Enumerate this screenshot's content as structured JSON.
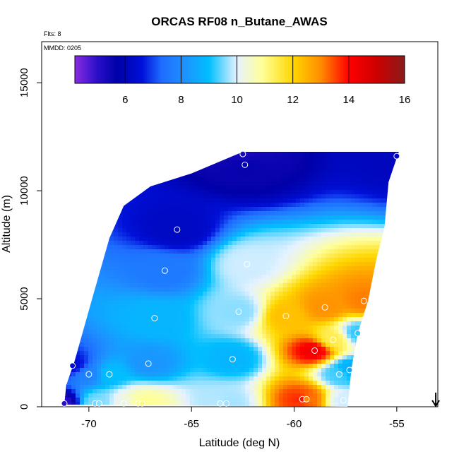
{
  "chart_data": {
    "type": "heatmap",
    "title": "ORCAS RF08 n_Butane_AWAS",
    "xlabel": "Latitude (deg N)",
    "ylabel": "Altitude (m)",
    "flights_label": "Flts: 8",
    "date_label": "MMDD: 0205",
    "xlim": [
      -72.3,
      -53.0
    ],
    "ylim": [
      0,
      16900
    ],
    "x_ticks": [
      -70,
      -65,
      -60,
      -55
    ],
    "x_tick_labels": [
      "-70",
      "-65",
      "-60",
      "-55"
    ],
    "y_ticks": [
      0,
      5000,
      10000,
      15000
    ],
    "y_tick_labels": [
      "0",
      "5000",
      "10000",
      "15000"
    ],
    "colorbar": {
      "min": 4.2,
      "max": 16,
      "ticks": [
        6,
        8,
        10,
        12,
        14,
        16
      ],
      "tick_labels": [
        "6",
        "8",
        "10",
        "12",
        "14",
        "16"
      ],
      "stops": [
        {
          "v": 4.2,
          "c": "#8a2be2"
        },
        {
          "v": 5.0,
          "c": "#2a0fc8"
        },
        {
          "v": 5.7,
          "c": "#0000a8"
        },
        {
          "v": 6.6,
          "c": "#0010d8"
        },
        {
          "v": 7.3,
          "c": "#1e6cff"
        },
        {
          "v": 8.1,
          "c": "#1e90ff"
        },
        {
          "v": 9.0,
          "c": "#00bfff"
        },
        {
          "v": 10.0,
          "c": "#e6f2ff"
        },
        {
          "v": 10.9,
          "c": "#ffff99"
        },
        {
          "v": 12.0,
          "c": "#ffd700"
        },
        {
          "v": 13.0,
          "c": "#ff8c00"
        },
        {
          "v": 14.0,
          "c": "#ff0000"
        },
        {
          "v": 15.0,
          "c": "#cd0000"
        },
        {
          "v": 16.0,
          "c": "#8b1a1a"
        }
      ]
    },
    "envelope": [
      {
        "lat": -71.2,
        "top": 100
      },
      {
        "lat": -71.1,
        "top": 1000
      },
      {
        "lat": -70.7,
        "top": 2100
      },
      {
        "lat": -69.9,
        "top": 4800
      },
      {
        "lat": -69.0,
        "top": 7800
      },
      {
        "lat": -68.3,
        "top": 9300
      },
      {
        "lat": -67.0,
        "top": 10200
      },
      {
        "lat": -65.0,
        "top": 10800
      },
      {
        "lat": -62.5,
        "top": 11800
      },
      {
        "lat": -54.9,
        "top": 11800
      },
      {
        "lat": -55.4,
        "top": 10400
      },
      {
        "lat": -55.6,
        "top": 8300
      },
      {
        "lat": -56.0,
        "top": 6800
      },
      {
        "lat": -56.4,
        "top": 4900
      },
      {
        "lat": -56.9,
        "top": 3400
      },
      {
        "lat": -57.2,
        "top": 1800
      },
      {
        "lat": -57.4,
        "top": 0
      }
    ],
    "samples": [
      {
        "lat": -71.2,
        "alt": 150,
        "value": 5.0
      },
      {
        "lat": -70.8,
        "alt": 1900,
        "value": 6.5
      },
      {
        "lat": -70.0,
        "alt": 1500,
        "value": 7.8
      },
      {
        "lat": -69.7,
        "alt": 150,
        "value": 9.5
      },
      {
        "lat": -69.5,
        "alt": 150,
        "value": 9.6
      },
      {
        "lat": -69.0,
        "alt": 1500,
        "value": 9.0
      },
      {
        "lat": -68.3,
        "alt": 150,
        "value": 10.2
      },
      {
        "lat": -67.6,
        "alt": 150,
        "value": 10.8
      },
      {
        "lat": -67.4,
        "alt": 150,
        "value": 11.0
      },
      {
        "lat": -67.1,
        "alt": 2000,
        "value": 8.2
      },
      {
        "lat": -66.8,
        "alt": 4100,
        "value": 8.8
      },
      {
        "lat": -66.3,
        "alt": 6300,
        "value": 7.6
      },
      {
        "lat": -65.7,
        "alt": 8200,
        "value": 6.2
      },
      {
        "lat": -63.6,
        "alt": 150,
        "value": 9.8
      },
      {
        "lat": -63.3,
        "alt": 150,
        "value": 9.7
      },
      {
        "lat": -63.0,
        "alt": 2200,
        "value": 8.8
      },
      {
        "lat": -62.7,
        "alt": 4400,
        "value": 9.6
      },
      {
        "lat": -62.3,
        "alt": 6600,
        "value": 9.9
      },
      {
        "lat": -62.5,
        "alt": 11700,
        "value": 5.3
      },
      {
        "lat": -62.4,
        "alt": 11200,
        "value": 5.6
      },
      {
        "lat": -60.4,
        "alt": 4200,
        "value": 12.3
      },
      {
        "lat": -59.6,
        "alt": 350,
        "value": 13.9
      },
      {
        "lat": -59.4,
        "alt": 350,
        "value": 13.0
      },
      {
        "lat": -59.0,
        "alt": 2600,
        "value": 14.2
      },
      {
        "lat": -58.5,
        "alt": 4600,
        "value": 12.9
      },
      {
        "lat": -58.1,
        "alt": 3100,
        "value": 11.4
      },
      {
        "lat": -57.8,
        "alt": 1500,
        "value": 9.3
      },
      {
        "lat": -57.6,
        "alt": 300,
        "value": 9.9
      },
      {
        "lat": -57.3,
        "alt": 1700,
        "value": 8.6
      },
      {
        "lat": -56.9,
        "alt": 3400,
        "value": 9.2
      },
      {
        "lat": -56.6,
        "alt": 4900,
        "value": 13.1
      },
      {
        "lat": -55.0,
        "alt": 11600,
        "value": 6.1
      }
    ],
    "arrow": {
      "lat": -53.1,
      "direction": "down"
    }
  }
}
